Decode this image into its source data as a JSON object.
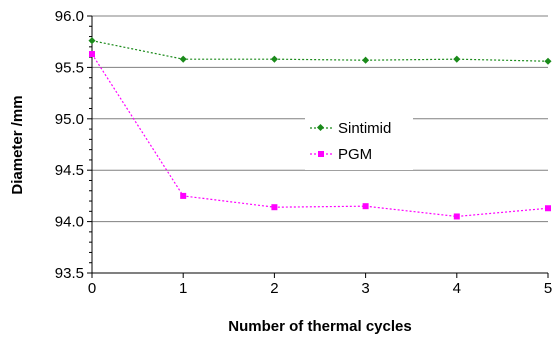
{
  "chart_data": {
    "type": "line",
    "x": [
      0,
      1,
      2,
      3,
      4,
      5
    ],
    "series": [
      {
        "name": "Sintimid",
        "values": [
          95.76,
          95.58,
          95.58,
          95.57,
          95.58,
          95.56
        ],
        "color": "#1a8a1a",
        "marker": "diamond"
      },
      {
        "name": "PGM",
        "values": [
          95.63,
          94.25,
          94.14,
          94.15,
          94.05,
          94.13
        ],
        "color": "#ff00ff",
        "marker": "square"
      }
    ],
    "xlabel": "Number of thermal cycles",
    "ylabel": "Diameter /mm",
    "xlim": [
      0,
      5
    ],
    "ylim": [
      93.5,
      96.0
    ],
    "xticks": [
      "0",
      "1",
      "2",
      "3",
      "4",
      "5"
    ],
    "yticks": [
      "93.5",
      "94.0",
      "94.5",
      "95.0",
      "95.5",
      "96.0"
    ],
    "grid": "horizontal",
    "legend_position": "center-right"
  }
}
